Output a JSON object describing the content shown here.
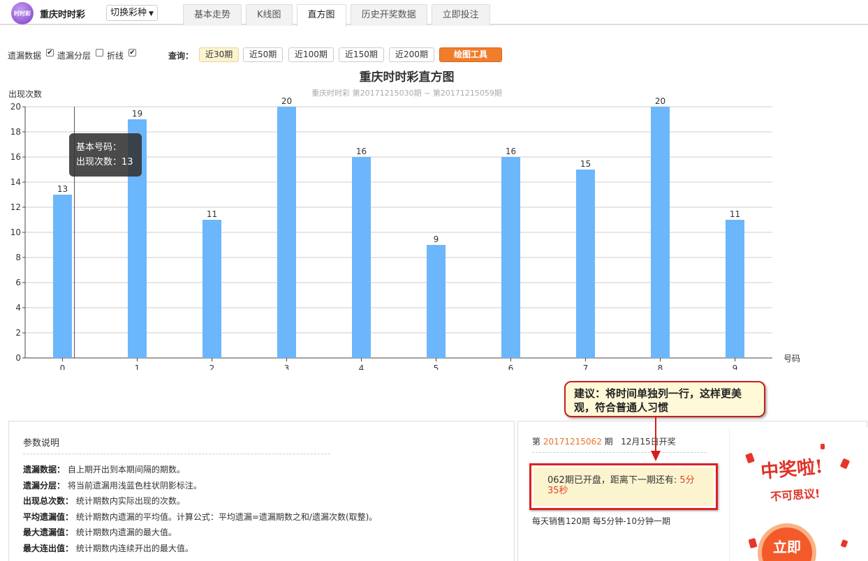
{
  "header": {
    "logo_text": "时时彩",
    "app_title": "重庆时时彩",
    "switch_label": "切换彩种",
    "tabs": [
      {
        "label": "基本走势",
        "active": false
      },
      {
        "label": "K线图",
        "active": false
      },
      {
        "label": "直方图",
        "active": true
      },
      {
        "label": "历史开奖数据",
        "active": false
      },
      {
        "label": "立即投注",
        "active": false
      }
    ]
  },
  "controls": {
    "options": [
      {
        "label": "遗漏数据",
        "checked": true
      },
      {
        "label": "遗漏分层",
        "checked": false
      },
      {
        "label": "折线",
        "checked": true
      }
    ],
    "query_label": "查询：",
    "query_buttons": [
      {
        "label": "近30期",
        "active": true
      },
      {
        "label": "近50期",
        "active": false
      },
      {
        "label": "近100期",
        "active": false
      },
      {
        "label": "近150期",
        "active": false
      },
      {
        "label": "近200期",
        "active": false
      }
    ],
    "draw_tool_label": "绘图工具"
  },
  "chart_data": {
    "type": "bar",
    "title": "重庆时时彩直方图",
    "subtitle": "重庆时时彩 第20171215030期 ~ 第20171215059期",
    "ylabel": "出现次数",
    "xlabel": "号码",
    "categories": [
      "0",
      "1",
      "2",
      "3",
      "4",
      "5",
      "6",
      "7",
      "8",
      "9"
    ],
    "values": [
      13,
      19,
      11,
      20,
      16,
      9,
      16,
      15,
      20,
      11
    ],
    "ylim": [
      0,
      20
    ],
    "yticks": [
      0,
      2,
      4,
      6,
      8,
      10,
      12,
      14,
      16,
      18,
      20
    ],
    "bar_color": "#6cb6fb",
    "grid": true
  },
  "tooltip": {
    "line1": "基本号码：",
    "line2": "出现次数：13"
  },
  "params_panel": {
    "title": "参数说明",
    "items": [
      {
        "term": "遗漏数据：",
        "desc": "自上期开出到本期间隔的期数。"
      },
      {
        "term": "遗漏分层：",
        "desc": "将当前遗漏用浅蓝色柱状阴影标注。"
      },
      {
        "term": "出现总次数：",
        "desc": "统计期数内实际出现的次数。"
      },
      {
        "term": "平均遗漏值：",
        "desc": "统计期数内遗漏的平均值。计算公式：平均遗漏=遗漏期数之和/遗漏次数(取整)。"
      },
      {
        "term": "最大遗漏值：",
        "desc": "统计期数内遗漏的最大值。"
      },
      {
        "term": "最大连出值：",
        "desc": "统计期数内连续开出的最大值。"
      }
    ]
  },
  "draw_panel": {
    "prefix": "第",
    "issue": "20171215062",
    "suffix": "期",
    "date_text": "12月15日开奖",
    "countdown_text": "062期已开盘，距离下一期还有:",
    "countdown_value": "5分35秒",
    "sales_info": "每天销售120期  每5分钟-10分钟一期"
  },
  "promo": {
    "title": "中奖啦!",
    "subtitle": "不可思议!",
    "button_label": "立即"
  },
  "callout": {
    "text": "建议：将时间单独列一行，这样更美观，符合普通人习惯"
  }
}
